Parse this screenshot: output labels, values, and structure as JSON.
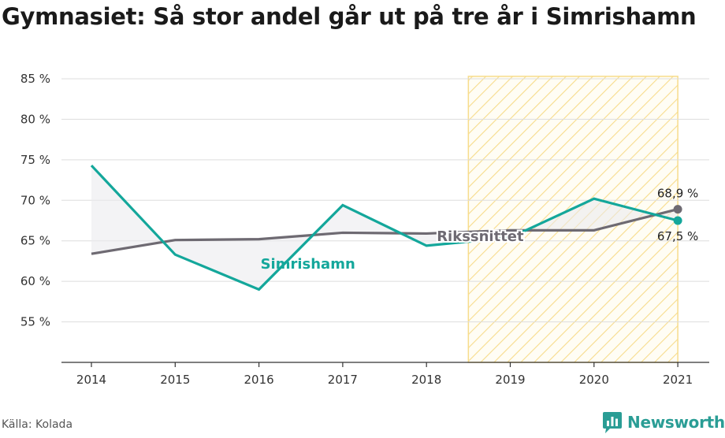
{
  "title": "Gymnasiet: Så stor andel går ut på tre år i Simrishamn",
  "source": "Källa: Kolada",
  "brand": "Newsworthy",
  "colors": {
    "local": "#14a79b",
    "national": "#6e6a72",
    "highlight": "#f7dc8c",
    "grid": "#dddddd",
    "logo": "#2a9d95"
  },
  "chart_data": {
    "type": "line",
    "x": [
      "2014",
      "2015",
      "2016",
      "2017",
      "2018",
      "2019",
      "2020",
      "2021"
    ],
    "ylim": [
      50,
      85
    ],
    "yticks": [
      "55 %",
      "60 %",
      "65 %",
      "70 %",
      "75 %",
      "80 %",
      "85 %"
    ],
    "ytick_values": [
      55,
      60,
      65,
      70,
      75,
      80,
      85
    ],
    "highlight_range": [
      "2019",
      "2021"
    ],
    "series": [
      {
        "name": "Simrishamn",
        "values": [
          74.3,
          63.3,
          59.0,
          69.4,
          64.4,
          65.4,
          70.2,
          67.5
        ]
      },
      {
        "name": "Rikssnittet",
        "values": [
          63.4,
          65.1,
          65.2,
          66.0,
          65.9,
          66.3,
          66.3,
          68.9
        ]
      }
    ],
    "end_labels": {
      "Simrishamn": "67,5 %",
      "Rikssnittet": "68,9 %"
    }
  }
}
